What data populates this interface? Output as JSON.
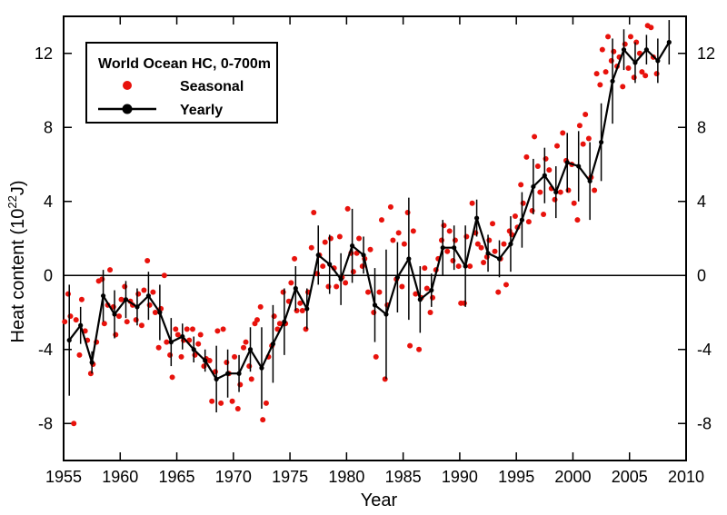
{
  "chart_data": {
    "type": "scatter",
    "title": "World Ocean HC, 0-700m",
    "xlabel": "Year",
    "ylabel_main": "Heat content (10",
    "ylabel_sup": "22",
    "ylabel_tail": "J)",
    "xlim": [
      1955,
      2010
    ],
    "ylim": [
      -10,
      14
    ],
    "xticks": [
      1955,
      1960,
      1965,
      1970,
      1975,
      1980,
      1985,
      1990,
      1995,
      2000,
      2005,
      2010
    ],
    "yticks": [
      -8,
      -4,
      0,
      4,
      8,
      12
    ],
    "ytick_labels": [
      "-8",
      "-4",
      "0",
      "4",
      "8",
      "12"
    ],
    "zero_line": true,
    "legend": {
      "title": "World Ocean HC, 0-700m",
      "placement": "top-left",
      "entries": [
        "Seasonal",
        "Yearly"
      ]
    },
    "colors": {
      "seasonal": "#e8120c",
      "yearly": "#000000"
    },
    "series": [
      {
        "name": "Seasonal",
        "points": [
          [
            1955.1,
            -2.5
          ],
          [
            1955.4,
            -1.0
          ],
          [
            1955.6,
            -2.2
          ],
          [
            1955.9,
            -8.0
          ],
          [
            1956.1,
            -2.4
          ],
          [
            1956.4,
            -4.3
          ],
          [
            1956.6,
            -1.3
          ],
          [
            1956.9,
            -3.0
          ],
          [
            1957.1,
            -3.5
          ],
          [
            1957.4,
            -5.3
          ],
          [
            1957.6,
            -4.8
          ],
          [
            1957.9,
            -3.6
          ],
          [
            1958.1,
            -0.3
          ],
          [
            1958.4,
            -0.2
          ],
          [
            1958.6,
            -2.6
          ],
          [
            1958.9,
            -1.6
          ],
          [
            1959.1,
            0.3
          ],
          [
            1959.4,
            -1.7
          ],
          [
            1959.6,
            -3.2
          ],
          [
            1959.9,
            -2.2
          ],
          [
            1960.1,
            -1.3
          ],
          [
            1960.4,
            -0.6
          ],
          [
            1960.6,
            -2.5
          ],
          [
            1960.9,
            -1.4
          ],
          [
            1961.1,
            -1.6
          ],
          [
            1961.4,
            -2.4
          ],
          [
            1961.6,
            -1.0
          ],
          [
            1961.9,
            -2.7
          ],
          [
            1962.1,
            -0.8
          ],
          [
            1962.4,
            0.8
          ],
          [
            1962.6,
            -1.6
          ],
          [
            1962.9,
            -0.9
          ],
          [
            1963.1,
            -2.0
          ],
          [
            1963.4,
            -3.9
          ],
          [
            1963.6,
            -1.8
          ],
          [
            1963.9,
            0.0
          ],
          [
            1964.1,
            -3.6
          ],
          [
            1964.4,
            -4.3
          ],
          [
            1964.6,
            -5.5
          ],
          [
            1964.9,
            -2.9
          ],
          [
            1965.1,
            -3.2
          ],
          [
            1965.4,
            -4.4
          ],
          [
            1965.6,
            -3.5
          ],
          [
            1965.9,
            -2.9
          ],
          [
            1966.1,
            -3.5
          ],
          [
            1966.4,
            -2.9
          ],
          [
            1966.6,
            -4.3
          ],
          [
            1966.9,
            -3.7
          ],
          [
            1967.1,
            -3.2
          ],
          [
            1967.4,
            -4.9
          ],
          [
            1967.6,
            -4.5
          ],
          [
            1967.9,
            -4.6
          ],
          [
            1968.1,
            -6.8
          ],
          [
            1968.4,
            -5.2
          ],
          [
            1968.6,
            -3.0
          ],
          [
            1968.9,
            -6.9
          ],
          [
            1969.1,
            -2.9
          ],
          [
            1969.4,
            -4.7
          ],
          [
            1969.6,
            -5.3
          ],
          [
            1969.9,
            -6.8
          ],
          [
            1970.1,
            -4.4
          ],
          [
            1970.4,
            -7.2
          ],
          [
            1970.6,
            -5.9
          ],
          [
            1970.9,
            -3.9
          ],
          [
            1971.1,
            -3.6
          ],
          [
            1971.4,
            -4.9
          ],
          [
            1971.6,
            -5.6
          ],
          [
            1971.9,
            -2.6
          ],
          [
            1972.1,
            -2.4
          ],
          [
            1972.4,
            -1.7
          ],
          [
            1972.6,
            -7.8
          ],
          [
            1972.9,
            -6.9
          ],
          [
            1973.1,
            -4.4
          ],
          [
            1973.4,
            -3.8
          ],
          [
            1973.6,
            -2.2
          ],
          [
            1973.9,
            -2.9
          ],
          [
            1974.1,
            -2.6
          ],
          [
            1974.4,
            -0.9
          ],
          [
            1974.6,
            -2.6
          ],
          [
            1974.9,
            -1.4
          ],
          [
            1975.1,
            -0.4
          ],
          [
            1975.4,
            0.9
          ],
          [
            1975.6,
            -1.9
          ],
          [
            1975.9,
            -1.5
          ],
          [
            1976.1,
            -1.9
          ],
          [
            1976.4,
            -2.9
          ],
          [
            1976.6,
            -0.9
          ],
          [
            1976.9,
            1.5
          ],
          [
            1977.1,
            3.4
          ],
          [
            1977.4,
            0.1
          ],
          [
            1977.6,
            1.1
          ],
          [
            1977.9,
            0.5
          ],
          [
            1978.1,
            1.8
          ],
          [
            1978.4,
            -0.6
          ],
          [
            1978.6,
            2.0
          ],
          [
            1978.9,
            0.4
          ],
          [
            1979.1,
            -0.6
          ],
          [
            1979.4,
            2.1
          ],
          [
            1979.6,
            -0.1
          ],
          [
            1979.9,
            -0.4
          ],
          [
            1980.1,
            3.6
          ],
          [
            1980.4,
            1.2
          ],
          [
            1980.6,
            0.2
          ],
          [
            1980.9,
            1.2
          ],
          [
            1981.1,
            2.0
          ],
          [
            1981.4,
            0.5
          ],
          [
            1981.6,
            0.9
          ],
          [
            1981.9,
            -0.9
          ],
          [
            1982.1,
            1.4
          ],
          [
            1982.4,
            -2.0
          ],
          [
            1982.6,
            -4.4
          ],
          [
            1982.9,
            -0.9
          ],
          [
            1983.1,
            3.0
          ],
          [
            1983.4,
            -5.6
          ],
          [
            1983.6,
            -1.6
          ],
          [
            1983.9,
            3.7
          ],
          [
            1984.1,
            1.9
          ],
          [
            1984.4,
            -0.2
          ],
          [
            1984.6,
            2.3
          ],
          [
            1984.9,
            -0.6
          ],
          [
            1985.1,
            1.7
          ],
          [
            1985.4,
            3.4
          ],
          [
            1985.6,
            -3.8
          ],
          [
            1985.9,
            2.4
          ],
          [
            1986.1,
            -1.0
          ],
          [
            1986.4,
            -4.0
          ],
          [
            1986.6,
            -1.2
          ],
          [
            1986.9,
            0.4
          ],
          [
            1987.1,
            -0.7
          ],
          [
            1987.4,
            -2.0
          ],
          [
            1987.6,
            -1.2
          ],
          [
            1987.9,
            0.3
          ],
          [
            1988.1,
            0.9
          ],
          [
            1988.4,
            1.9
          ],
          [
            1988.6,
            2.7
          ],
          [
            1988.9,
            1.3
          ],
          [
            1989.1,
            2.4
          ],
          [
            1989.4,
            0.8
          ],
          [
            1989.6,
            1.9
          ],
          [
            1989.9,
            0.5
          ],
          [
            1990.1,
            -1.5
          ],
          [
            1990.4,
            -1.5
          ],
          [
            1990.6,
            2.1
          ],
          [
            1990.9,
            0.5
          ],
          [
            1991.1,
            3.9
          ],
          [
            1991.4,
            2.3
          ],
          [
            1991.6,
            1.7
          ],
          [
            1991.9,
            1.5
          ],
          [
            1992.1,
            0.7
          ],
          [
            1992.4,
            1.0
          ],
          [
            1992.6,
            1.9
          ],
          [
            1992.9,
            2.8
          ],
          [
            1993.1,
            1.3
          ],
          [
            1993.4,
            -0.9
          ],
          [
            1993.6,
            0.9
          ],
          [
            1993.9,
            1.7
          ],
          [
            1994.1,
            -0.5
          ],
          [
            1994.4,
            2.4
          ],
          [
            1994.6,
            2.2
          ],
          [
            1994.9,
            3.2
          ],
          [
            1995.1,
            2.6
          ],
          [
            1995.4,
            4.9
          ],
          [
            1995.6,
            3.9
          ],
          [
            1995.9,
            6.4
          ],
          [
            1996.1,
            2.9
          ],
          [
            1996.4,
            3.5
          ],
          [
            1996.6,
            7.5
          ],
          [
            1996.9,
            5.9
          ],
          [
            1997.1,
            4.5
          ],
          [
            1997.4,
            3.3
          ],
          [
            1997.6,
            6.3
          ],
          [
            1997.9,
            5.7
          ],
          [
            1998.1,
            4.7
          ],
          [
            1998.4,
            4.1
          ],
          [
            1998.6,
            7.0
          ],
          [
            1998.9,
            4.5
          ],
          [
            1999.1,
            7.7
          ],
          [
            1999.4,
            6.2
          ],
          [
            1999.6,
            4.6
          ],
          [
            1999.9,
            6.0
          ],
          [
            2000.1,
            3.9
          ],
          [
            2000.4,
            3.0
          ],
          [
            2000.6,
            8.1
          ],
          [
            2000.9,
            7.1
          ],
          [
            2001.1,
            8.7
          ],
          [
            2001.4,
            7.4
          ],
          [
            2001.6,
            5.3
          ],
          [
            2001.9,
            4.6
          ],
          [
            2002.1,
            10.9
          ],
          [
            2002.4,
            10.3
          ],
          [
            2002.6,
            12.2
          ],
          [
            2002.9,
            11.0
          ],
          [
            2003.1,
            12.9
          ],
          [
            2003.4,
            11.6
          ],
          [
            2003.6,
            12.1
          ],
          [
            2003.9,
            11.3
          ],
          [
            2004.1,
            11.8
          ],
          [
            2004.4,
            10.2
          ],
          [
            2004.6,
            12.5
          ],
          [
            2004.9,
            11.2
          ],
          [
            2005.1,
            12.9
          ],
          [
            2005.4,
            10.7
          ],
          [
            2005.6,
            12.6
          ],
          [
            2005.9,
            12.0
          ],
          [
            2006.1,
            11.0
          ],
          [
            2006.4,
            10.8
          ],
          [
            2006.6,
            13.5
          ],
          [
            2006.9,
            13.4
          ],
          [
            2007.1,
            11.8
          ],
          [
            2007.4,
            10.9
          ]
        ]
      },
      {
        "name": "Yearly",
        "x": [
          1955,
          1956,
          1957,
          1958,
          1959,
          1960,
          1961,
          1962,
          1963,
          1964,
          1965,
          1966,
          1967,
          1968,
          1969,
          1970,
          1971,
          1972,
          1973,
          1974,
          1975,
          1976,
          1977,
          1978,
          1979,
          1980,
          1981,
          1982,
          1983,
          1984,
          1985,
          1986,
          1987,
          1988,
          1989,
          1990,
          1991,
          1992,
          1993,
          1994,
          1995,
          1996,
          1997,
          1998,
          1999,
          2000,
          2001,
          2002,
          2003,
          2004,
          2005,
          2006,
          2007,
          2008
        ],
        "y": [
          -3.5,
          -2.7,
          -4.7,
          -1.1,
          -2.1,
          -1.3,
          -1.7,
          -1.1,
          -2.0,
          -3.6,
          -3.3,
          -4.0,
          -4.6,
          -5.6,
          -5.3,
          -5.3,
          -4.0,
          -5.0,
          -3.7,
          -2.5,
          -0.7,
          -1.8,
          1.1,
          0.6,
          -0.2,
          1.6,
          1.1,
          -1.6,
          -2.1,
          -0.1,
          0.9,
          -1.3,
          -0.8,
          1.5,
          1.5,
          0.5,
          3.1,
          1.2,
          0.9,
          1.7,
          3.0,
          4.8,
          5.4,
          4.5,
          6.1,
          5.9,
          5.1,
          7.2,
          10.5,
          12.2,
          11.5,
          12.2,
          11.6,
          12.6
        ],
        "err": [
          3.0,
          1.0,
          0.6,
          1.4,
          1.3,
          1.0,
          1.0,
          1.3,
          1.5,
          1.3,
          0.7,
          0.7,
          0.6,
          1.8,
          1.3,
          1.0,
          1.2,
          2.2,
          2.1,
          1.8,
          1.2,
          1.1,
          1.6,
          1.6,
          1.4,
          2.0,
          1.0,
          2.0,
          3.5,
          1.9,
          3.3,
          1.8,
          0.9,
          1.5,
          1.2,
          2.2,
          1.0,
          1.0,
          1.0,
          1.5,
          1.5,
          1.5,
          1.5,
          1.4,
          1.6,
          1.9,
          2.1,
          2.1,
          2.3,
          1.1,
          1.1,
          0.8,
          1.2,
          1.2
        ]
      }
    ]
  }
}
